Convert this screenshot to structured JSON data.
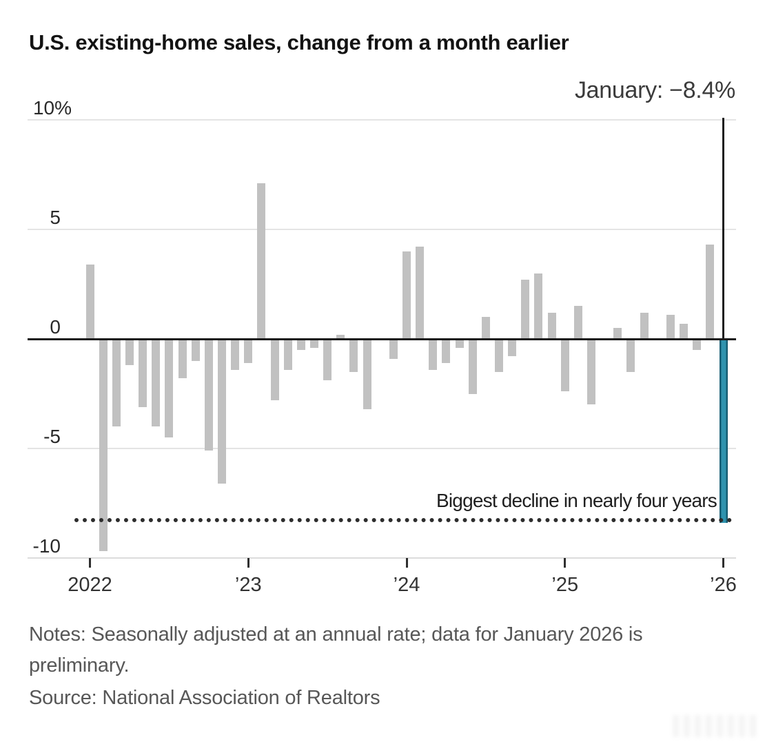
{
  "header": {
    "title": "U.S. existing-home sales, change from a month earlier"
  },
  "chart_data": {
    "type": "bar",
    "title": "U.S. existing-home sales, change from a month earlier",
    "unit": "%",
    "categories": [
      "Jan 2022",
      "Feb 2022",
      "Mar 2022",
      "Apr 2022",
      "May 2022",
      "Jun 2022",
      "Jul 2022",
      "Aug 2022",
      "Sep 2022",
      "Oct 2022",
      "Nov 2022",
      "Dec 2022",
      "Jan 2023",
      "Feb 2023",
      "Mar 2023",
      "Apr 2023",
      "May 2023",
      "Jun 2023",
      "Jul 2023",
      "Aug 2023",
      "Sep 2023",
      "Oct 2023",
      "Nov 2023",
      "Dec 2023",
      "Jan 2024",
      "Feb 2024",
      "Mar 2024",
      "Apr 2024",
      "May 2024",
      "Jun 2024",
      "Jul 2024",
      "Aug 2024",
      "Sep 2024",
      "Oct 2024",
      "Nov 2024",
      "Dec 2024",
      "Jan 2025",
      "Feb 2025",
      "Mar 2025",
      "Apr 2025",
      "May 2025",
      "Jun 2025",
      "Jul 2025",
      "Aug 2025",
      "Sep 2025",
      "Oct 2025",
      "Nov 2025",
      "Dec 2025",
      "Jan 2026"
    ],
    "values": [
      3.4,
      -9.7,
      -4.0,
      -1.2,
      -3.1,
      -4.0,
      -4.5,
      -1.8,
      -1.0,
      -5.1,
      -6.6,
      -1.4,
      -1.1,
      7.1,
      -2.8,
      -1.4,
      -0.5,
      -0.4,
      -1.9,
      0.2,
      -1.5,
      -3.2,
      0.0,
      -0.9,
      4.0,
      4.2,
      -1.4,
      -1.1,
      -0.4,
      -2.5,
      1.0,
      -1.5,
      -0.8,
      2.7,
      3.0,
      1.2,
      -2.4,
      1.5,
      -3.0,
      0.0,
      0.5,
      -1.5,
      1.2,
      0.0,
      1.1,
      0.7,
      -0.5,
      4.3,
      -8.4
    ],
    "bar_color": "#c1c1c1",
    "highlight": {
      "index": 48,
      "value": -8.4,
      "callout": "January: −8.4%",
      "color": "#2f93ae",
      "edge_color": "#175d73"
    },
    "y_axis": {
      "ticks": [
        {
          "value": 10,
          "label": "10%"
        },
        {
          "value": 5,
          "label": "5"
        },
        {
          "value": 0,
          "label": "0"
        },
        {
          "value": -5,
          "label": "-5"
        },
        {
          "value": -10,
          "label": "-10"
        }
      ],
      "range": [
        -10.5,
        10
      ],
      "grid": true
    },
    "x_axis": {
      "ticks": [
        {
          "index": 0,
          "label": "2022"
        },
        {
          "index": 12,
          "label": "’23"
        },
        {
          "index": 24,
          "label": "’24"
        },
        {
          "index": 36,
          "label": "’25"
        },
        {
          "index": 48,
          "label": "’26"
        }
      ]
    },
    "annotation": {
      "text": "Biggest decline in nearly four years",
      "line_value": -8.4,
      "line_style": "dotted"
    },
    "legend": "none"
  },
  "footer": {
    "notes": "Notes: Seasonally adjusted at an annual rate; data for January 2026 is preliminary.",
    "source": "Source: National Association of Realtors"
  }
}
